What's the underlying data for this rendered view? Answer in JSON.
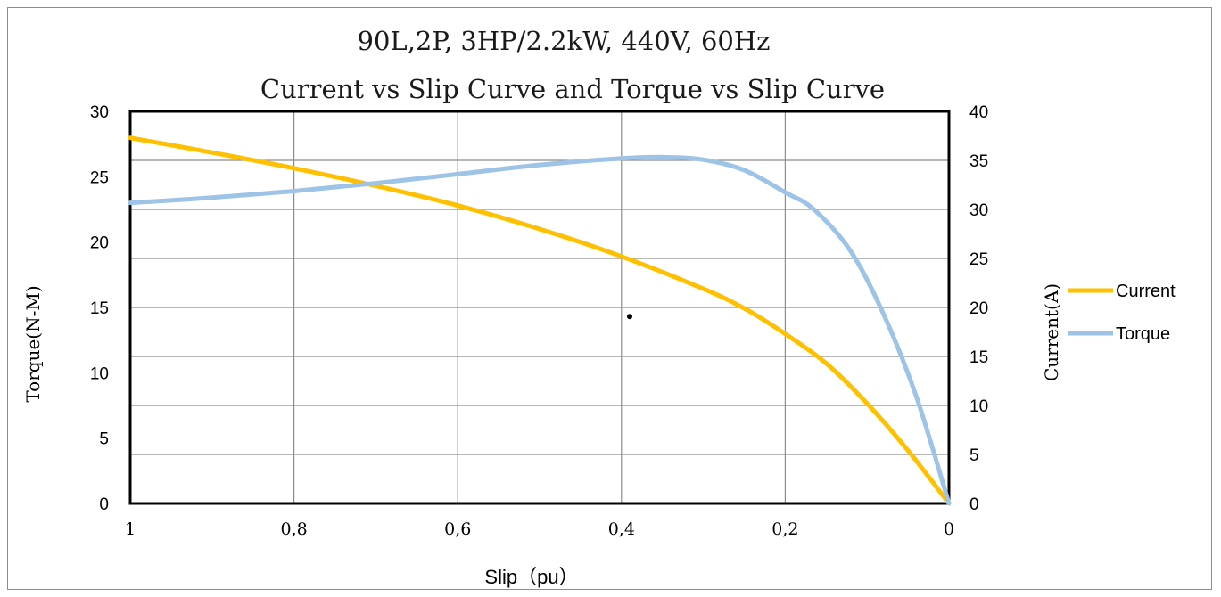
{
  "chart_data": {
    "type": "line",
    "title": "90L,2P, 3HP/2.2kW, 440V, 60Hz",
    "subtitle": "Current vs Slip Curve and Torque vs Slip Curve",
    "xlabel": "Slip（pu）",
    "ylabel_left": "Torque(N-M)",
    "ylabel_right": "Current(A)",
    "x_ticks": [
      "1",
      "0,8",
      "0,6",
      "0,4",
      "0,2",
      "0"
    ],
    "y_left_ticks": [
      "0",
      "5",
      "10",
      "15",
      "20",
      "25",
      "30"
    ],
    "y_right_ticks": [
      "0",
      "5",
      "10",
      "15",
      "20",
      "25",
      "30",
      "35",
      "40"
    ],
    "xlim": [
      1,
      0
    ],
    "ylim_left": [
      0,
      30
    ],
    "ylim_right": [
      0,
      40
    ],
    "grid": true,
    "legend_position": "right",
    "series": [
      {
        "name": "Current",
        "axis": "right",
        "color": "#ffc000",
        "x": [
          1,
          0.9,
          0.8,
          0.7,
          0.6,
          0.5,
          0.4,
          0.3,
          0.25,
          0.2,
          0.15,
          0.1,
          0.05,
          0
        ],
        "y": [
          37.3,
          35.8,
          34.2,
          32.4,
          30.4,
          28.0,
          25.2,
          21.9,
          19.9,
          17.3,
          14.3,
          10.2,
          5.4,
          0
        ]
      },
      {
        "name": "Torque",
        "axis": "left",
        "color": "#9dc3e6",
        "x": [
          1,
          0.9,
          0.8,
          0.7,
          0.6,
          0.5,
          0.4,
          0.35,
          0.3,
          0.25,
          0.2,
          0.165,
          0.12,
          0.08,
          0.04,
          0
        ],
        "y": [
          23.0,
          23.4,
          23.9,
          24.5,
          25.2,
          25.9,
          26.4,
          26.5,
          26.3,
          25.5,
          23.8,
          22.5,
          19.3,
          14.5,
          8.2,
          0
        ]
      }
    ],
    "marker_point": {
      "x": 0.39,
      "y_left": 14.3
    }
  }
}
